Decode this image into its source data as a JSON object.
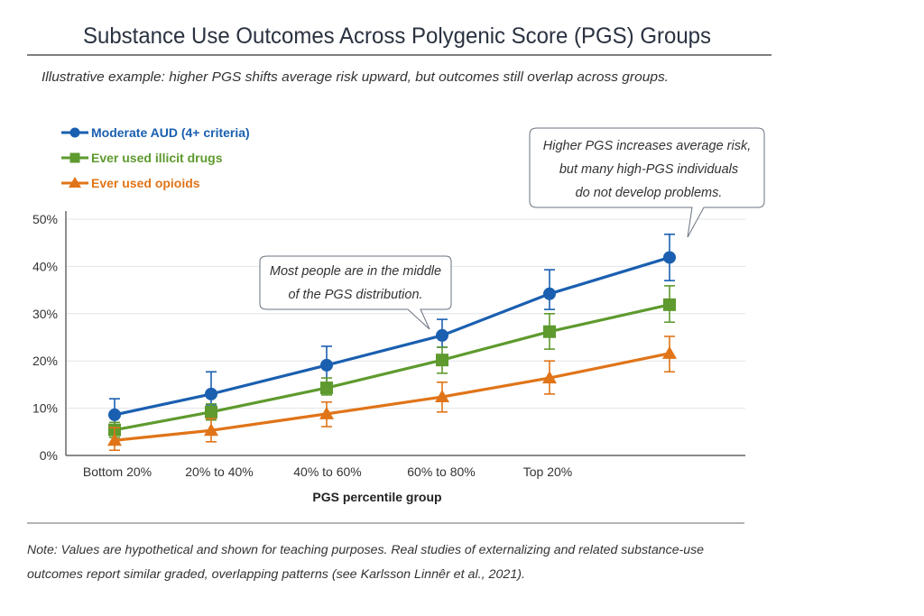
{
  "title": "Substance Use Outcomes Across Polygenic Score (PGS) Groups",
  "subtitle": "Illustrative example: higher PGS shifts average risk upward, but outcomes still overlap across groups.",
  "callouts": {
    "middle": [
      "Most people are in the middle",
      "of the PGS distribution."
    ],
    "right": [
      "Higher PGS increases average risk,",
      "but many high-PGS individuals",
      "do not develop problems."
    ]
  },
  "note": [
    "Note: Values are hypothetical and shown for teaching purposes. Real studies of externalizing and related substance-use",
    "outcomes report similar graded, overlapping patterns (see Karlsson Linnêr et al., 2021)."
  ],
  "chart_data": {
    "type": "line",
    "title": "Substance Use Outcomes Across Polygenic Score (PGS) Groups",
    "xlabel": "PGS percentile group",
    "ylabel": "",
    "categories": [
      "Bottom 20%",
      "20% to 40%",
      "40% to 60%",
      "60% to 80%",
      "Top 20%",
      ""
    ],
    "ylim": [
      0,
      50
    ],
    "yticks": [
      "0%",
      "10%",
      "20%",
      "30%",
      "40%",
      "50%"
    ],
    "grid": true,
    "legend_position": "top-left",
    "error_bars": true,
    "series": [
      {
        "name": "Moderate AUD (4+ criteria)",
        "color": "#1a5fb0",
        "marker": "circle",
        "values": [
          8.6,
          13.0,
          19.1,
          25.4,
          34.2,
          41.9
        ],
        "lower": [
          5.2,
          10.7,
          15.4,
          22.9,
          30.9,
          37.0
        ],
        "upper": [
          12.0,
          17.7,
          23.1,
          28.8,
          39.3,
          46.8
        ]
      },
      {
        "name": "Ever used illicit drugs",
        "color": "#5e9a2e",
        "marker": "square",
        "values": [
          5.4,
          9.2,
          14.3,
          20.2,
          26.2,
          31.9
        ],
        "lower": [
          3.8,
          7.5,
          12.8,
          17.4,
          22.5,
          28.2
        ],
        "upper": [
          7.0,
          10.9,
          16.4,
          22.9,
          30.0,
          35.9
        ]
      },
      {
        "name": "Ever used opioids",
        "color": "#e07418",
        "marker": "triangle",
        "values": [
          3.2,
          5.3,
          8.8,
          12.4,
          16.4,
          21.6
        ],
        "lower": [
          1.1,
          2.9,
          6.1,
          9.2,
          13.0,
          17.7
        ],
        "upper": [
          5.9,
          7.8,
          11.3,
          15.5,
          20.0,
          25.2
        ]
      }
    ]
  }
}
